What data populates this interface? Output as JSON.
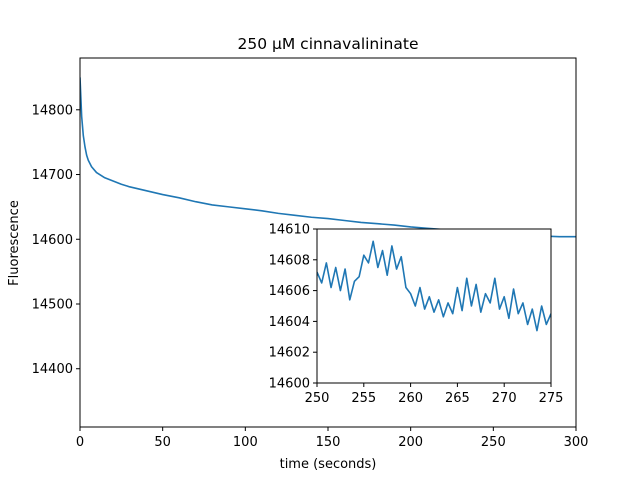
{
  "chart_data": [
    {
      "type": "line",
      "title": "250 μM cinnavalininate",
      "xlabel": "time (seconds)",
      "ylabel": "Fluorescence",
      "xlim": [
        0,
        300
      ],
      "ylim": [
        14310,
        14880
      ],
      "xticks": [
        "0",
        "50",
        "100",
        "150",
        "200",
        "250",
        "300"
      ],
      "yticks": [
        "14400",
        "14500",
        "14600",
        "14700",
        "14800"
      ],
      "grid": false,
      "series": [
        {
          "color": "#1f77b4",
          "x": [
            0,
            0.5,
            1,
            2,
            3,
            4,
            5,
            7,
            10,
            15,
            20,
            25,
            30,
            40,
            50,
            60,
            70,
            80,
            90,
            100,
            110,
            120,
            130,
            140,
            150,
            160,
            170,
            180,
            190,
            200,
            210,
            220,
            230,
            240,
            250,
            260,
            270,
            280,
            290,
            300
          ],
          "y": [
            14850,
            14820,
            14790,
            14760,
            14743,
            14730,
            14722,
            14712,
            14703,
            14695,
            14690,
            14685,
            14681,
            14675,
            14669,
            14664,
            14658,
            14653,
            14650,
            14647,
            14644,
            14640,
            14637,
            14634,
            14632,
            14629,
            14626,
            14624,
            14622,
            14619,
            14617,
            14615,
            14613,
            14611,
            14609,
            14608,
            14606,
            14605,
            14604,
            14604
          ]
        }
      ]
    },
    {
      "type": "line",
      "title": "",
      "xlabel": "",
      "ylabel": "",
      "xlim": [
        250,
        275
      ],
      "ylim": [
        14600,
        14610
      ],
      "xticks": [
        "250",
        "255",
        "260",
        "265",
        "270",
        "275"
      ],
      "yticks": [
        "14600",
        "14602",
        "14604",
        "14606",
        "14608",
        "14610"
      ],
      "grid": false,
      "series": [
        {
          "color": "#1f77b4",
          "x": [
            250,
            250.5,
            251,
            251.5,
            252,
            252.5,
            253,
            253.5,
            254,
            254.5,
            255,
            255.5,
            256,
            256.5,
            257,
            257.5,
            258,
            258.5,
            259,
            259.5,
            260,
            260.5,
            261,
            261.5,
            262,
            262.5,
            263,
            263.5,
            264,
            264.5,
            265,
            265.5,
            266,
            266.5,
            267,
            267.5,
            268,
            268.5,
            269,
            269.5,
            270,
            270.5,
            271,
            271.5,
            272,
            272.5,
            273,
            273.5,
            274,
            274.5,
            275
          ],
          "y": [
            14607.2,
            14606.5,
            14607.8,
            14606.2,
            14607.5,
            14606.0,
            14607.4,
            14605.4,
            14606.6,
            14606.9,
            14608.3,
            14607.8,
            14609.2,
            14607.5,
            14608.6,
            14607.0,
            14608.9,
            14607.4,
            14608.2,
            14606.2,
            14605.8,
            14605.0,
            14606.2,
            14604.8,
            14605.6,
            14604.6,
            14605.4,
            14604.3,
            14605.2,
            14604.5,
            14606.2,
            14604.7,
            14606.8,
            14605.0,
            14606.4,
            14604.6,
            14605.8,
            14605.2,
            14606.8,
            14604.8,
            14605.6,
            14604.2,
            14606.1,
            14604.5,
            14605.2,
            14603.8,
            14604.8,
            14603.4,
            14605.0,
            14603.8,
            14604.5
          ]
        }
      ]
    }
  ]
}
